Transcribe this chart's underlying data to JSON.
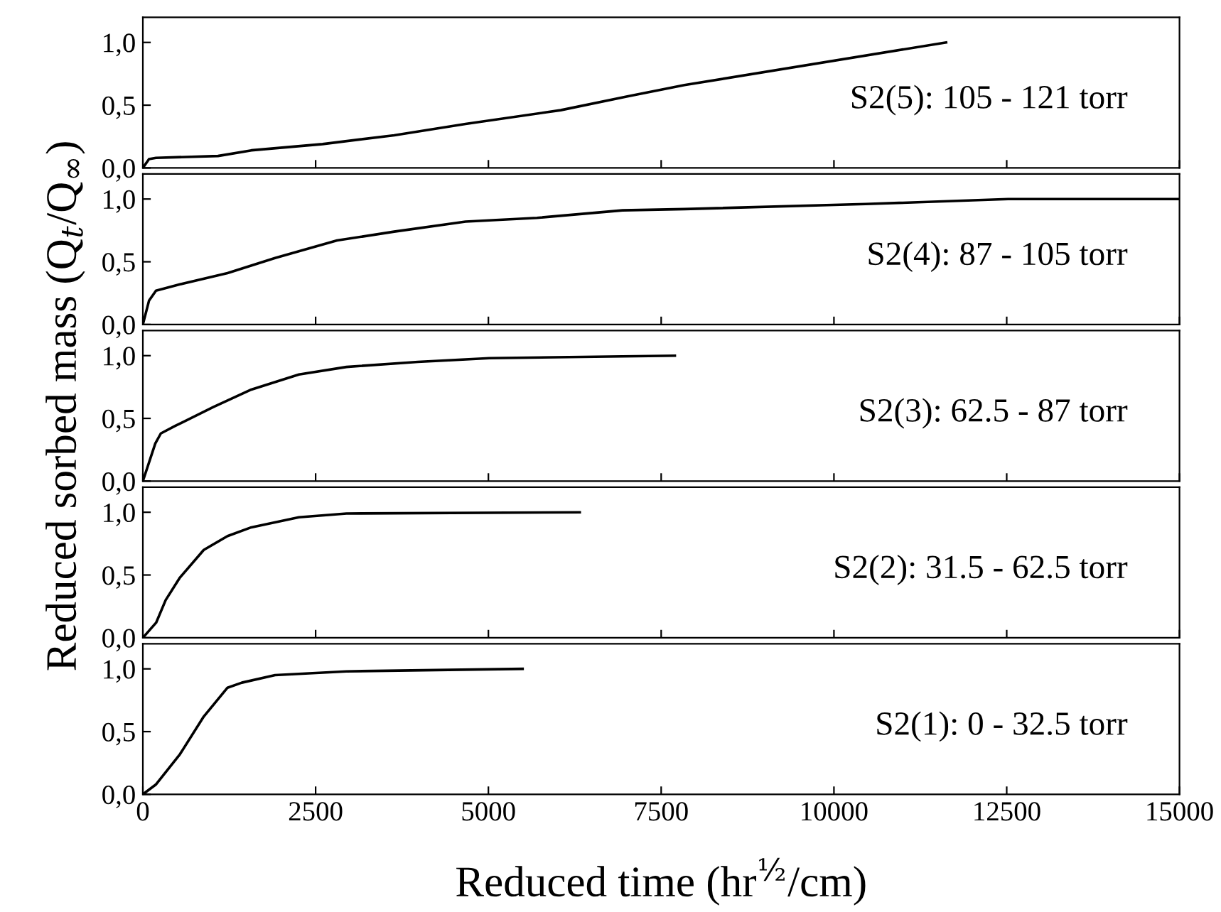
{
  "chart_data": [
    {
      "type": "line",
      "annotations": [
        "S2(5): 105 - 121 torr"
      ],
      "tick_labels": "y",
      "xlim": [
        0,
        15000
      ],
      "xticks": [
        0,
        2500,
        5000,
        7500,
        10000,
        12500,
        15000
      ],
      "ylim": [
        0,
        1.2
      ],
      "yticks": [
        {
          "value": 0,
          "label": "0,0"
        },
        {
          "value": 0.5,
          "label": "0,5"
        },
        {
          "value": 1,
          "label": "1,0"
        }
      ],
      "series": [
        {
          "color": "#000000",
          "x": [
            0,
            89,
            190,
            1087,
            1570,
            2600,
            3636,
            4669,
            6046,
            7010,
            7836,
            11623
          ],
          "values": [
            0,
            0.07,
            0.08,
            0.095,
            0.14,
            0.19,
            0.26,
            0.35,
            0.46,
            0.57,
            0.66,
            1.0
          ]
        }
      ]
    },
    {
      "type": "line",
      "annotations": [
        "S2(4): 87 - 105 torr"
      ],
      "tick_labels": "y",
      "xlim": [
        0,
        15000
      ],
      "xticks": [
        0,
        2500,
        5000,
        7500,
        10000,
        12500,
        15000
      ],
      "ylim": [
        0,
        1.2
      ],
      "yticks": [
        {
          "value": 0,
          "label": "0,0"
        },
        {
          "value": 0.5,
          "label": "0,5"
        },
        {
          "value": 1,
          "label": "1,0"
        }
      ],
      "series": [
        {
          "color": "#000000",
          "x": [
            0,
            89,
            190,
            537,
            1225,
            1913,
            2810,
            3636,
            4669,
            5702,
            6942,
            7836,
            10454,
            12520,
            15000
          ],
          "values": [
            0,
            0.19,
            0.27,
            0.32,
            0.41,
            0.53,
            0.67,
            0.74,
            0.82,
            0.85,
            0.91,
            0.92,
            0.96,
            1.0,
            1.0
          ]
        }
      ]
    },
    {
      "type": "line",
      "annotations": [
        "S2(3): 62.5 - 87 torr"
      ],
      "ylabel": "Reduced sorbed mass (Q$_{t}$/Q$_{∞}$)",
      "tick_labels": "y",
      "xlim": [
        0,
        15000
      ],
      "xticks": [
        0,
        2500,
        5000,
        7500,
        10000,
        12500,
        15000
      ],
      "ylim": [
        0,
        1.2
      ],
      "yticks": [
        {
          "value": 0,
          "label": "0,0"
        },
        {
          "value": 0.5,
          "label": "0,5"
        },
        {
          "value": 1,
          "label": "1,0"
        }
      ],
      "series": [
        {
          "color": "#000000",
          "x": [
            0,
            180,
            260,
            467,
            1018,
            1570,
            2258,
            2946,
            3979,
            5012,
            7698
          ],
          "values": [
            0,
            0.3,
            0.38,
            0.44,
            0.59,
            0.73,
            0.85,
            0.91,
            0.95,
            0.98,
            1.0
          ]
        }
      ]
    },
    {
      "type": "line",
      "annotations": [
        "S2(2): 31.5 - 62.5 torr"
      ],
      "tick_labels": "y",
      "xlim": [
        0,
        15000
      ],
      "xticks": [
        0,
        2500,
        5000,
        7500,
        10000,
        12500,
        15000
      ],
      "ylim": [
        0,
        1.2
      ],
      "yticks": [
        {
          "value": 0,
          "label": "0,0"
        },
        {
          "value": 0.5,
          "label": "0,5"
        },
        {
          "value": 1,
          "label": "1,0"
        }
      ],
      "series": [
        {
          "color": "#000000",
          "x": [
            0,
            192,
            330,
            537,
            881,
            1225,
            1570,
            2258,
            2946,
            6322
          ],
          "values": [
            0,
            0.12,
            0.3,
            0.48,
            0.7,
            0.81,
            0.88,
            0.96,
            0.99,
            1.0
          ]
        }
      ]
    },
    {
      "type": "line",
      "annotations": [
        "S2(1): 0 - 32.5 torr"
      ],
      "xlabel": "Reduced time (hr$^{½}$/cm)",
      "xlim": [
        0,
        15000
      ],
      "xticks": [
        0,
        2500,
        5000,
        7500,
        10000,
        12500,
        15000
      ],
      "ylim": [
        0,
        1.2
      ],
      "yticks": [
        {
          "value": 0,
          "label": "0,0"
        },
        {
          "value": 0.5,
          "label": "0,5"
        },
        {
          "value": 1,
          "label": "1,0"
        }
      ],
      "series": [
        {
          "color": "#000000",
          "x": [
            0,
            192,
            537,
            881,
            1225,
            1432,
            1913,
            2946,
            5495
          ],
          "values": [
            0,
            0.08,
            0.32,
            0.62,
            0.85,
            0.89,
            0.95,
            0.98,
            1.0
          ]
        }
      ]
    }
  ]
}
